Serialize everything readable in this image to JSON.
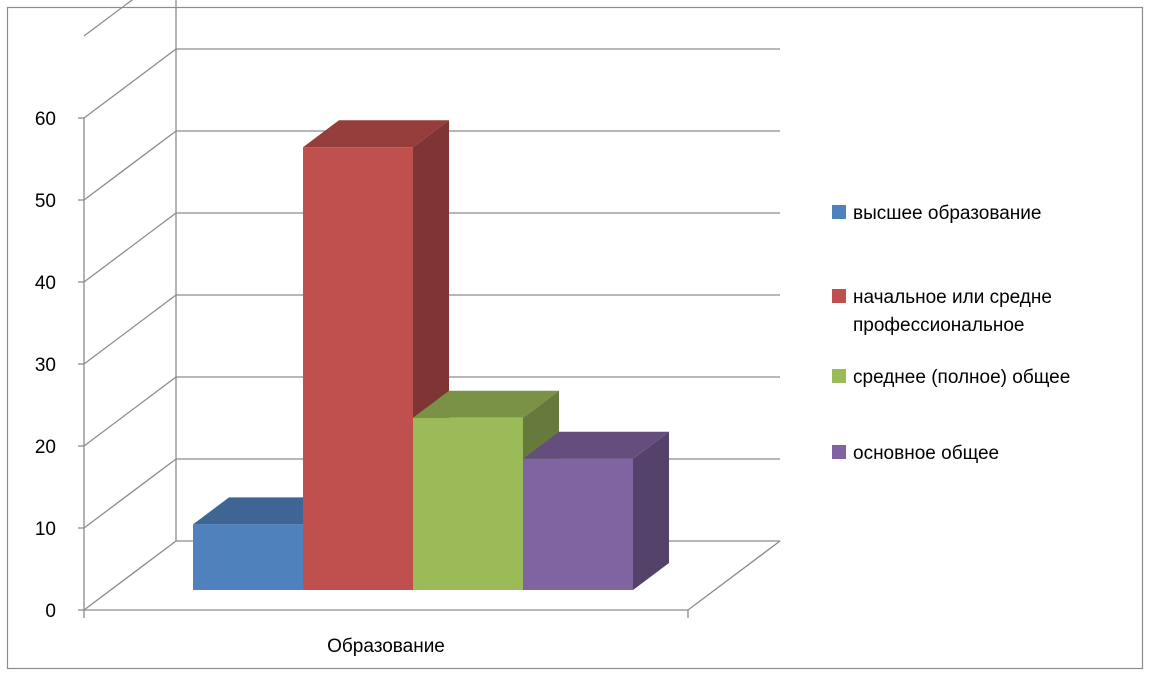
{
  "chart_data": {
    "type": "bar",
    "style": "3d-clustered-column",
    "categories": [
      "Образование"
    ],
    "series": [
      {
        "name": "высшее образование",
        "values": [
          8
        ],
        "color": "#4F81BD"
      },
      {
        "name": "начальное или средне профессиональное",
        "name_lines": [
          "начальное или средне",
          "профессиональное"
        ],
        "values": [
          54
        ],
        "color": "#C0504D"
      },
      {
        "name": "среднее (полное) общее",
        "values": [
          21
        ],
        "color": "#9BBB59"
      },
      {
        "name": "основное общее",
        "values": [
          16
        ],
        "color": "#8064A2"
      }
    ],
    "ylim": [
      0,
      60
    ],
    "yticks": [
      "0",
      "10",
      "20",
      "30",
      "40",
      "50",
      "60"
    ],
    "xlabel": "",
    "ylabel": "",
    "title": "",
    "grid": true,
    "legend_position": "right"
  }
}
